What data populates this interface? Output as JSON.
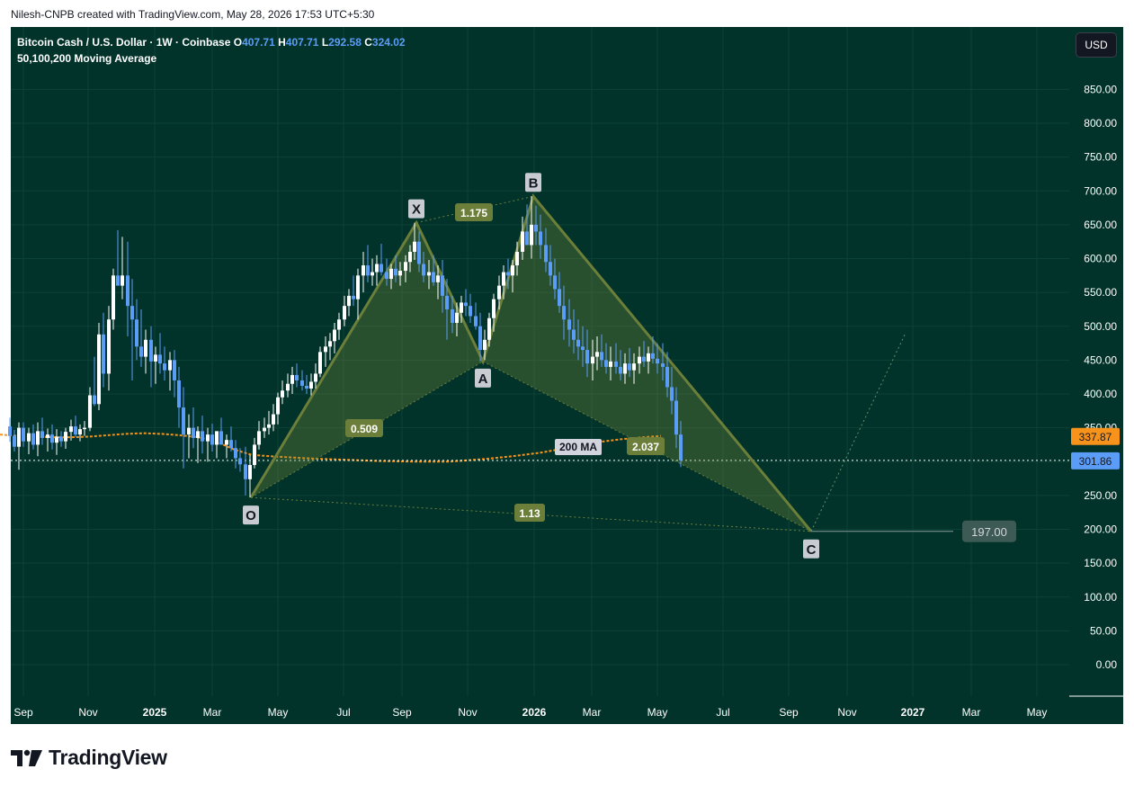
{
  "header": {
    "attribution": "Nilesh-CNPB created with TradingView.com, May 28, 2026 17:53 UTC+5:30"
  },
  "legend": {
    "symbol": "Bitcoin Cash / U.S. Dollar · 1W · Coinbase",
    "o_label": "O",
    "o_value": "407.71",
    "h_label": "H",
    "h_value": "407.71",
    "l_label": "L",
    "l_value": "292.58",
    "c_label": "C",
    "c_value": "324.02",
    "indicator": "50,100,200 Moving Average"
  },
  "currency_button": "USD",
  "brand": {
    "name": "TradingView"
  },
  "colors": {
    "background": "#01332a",
    "candle_up": "#ffffff",
    "candle_down": "#5b9cf6",
    "pattern_line": "#6b7f3a",
    "pattern_fill": "#7b8f3a",
    "ma_line": "#f7931a",
    "label_fill": "#6b7f3a",
    "price_badge": "#5b9cf6",
    "ma_badge": "#f7931a"
  },
  "chart_data": {
    "type": "candlestick",
    "interval": "1W",
    "yaxis": {
      "ticks": [
        "850.00",
        "800.00",
        "750.00",
        "700.00",
        "650.00",
        "600.00",
        "550.00",
        "500.00",
        "450.00",
        "400.00",
        "350.00",
        "300.00",
        "250.00",
        "200.00",
        "150.00",
        "100.00",
        "50.00",
        "0.00"
      ],
      "range": [
        -47,
        905
      ]
    },
    "xaxis": {
      "ticks": [
        "Sep",
        "Nov",
        "2025",
        "Mar",
        "May",
        "Jul",
        "Sep",
        "Nov",
        "2026",
        "Mar",
        "May",
        "Jul",
        "Sep",
        "Nov",
        "2027",
        "Mar",
        "May"
      ],
      "bold_ticks": [
        "2025",
        "2026",
        "2027"
      ]
    },
    "last_price": "301.86",
    "last_price_value": 301.86,
    "ma_badge": "337.87",
    "ma_badge_value": 337.87,
    "ma_label": "200 MA",
    "ma_values": [
      [
        0,
        340
      ],
      [
        20,
        338
      ],
      [
        40,
        337
      ],
      [
        60,
        336
      ],
      [
        80,
        336
      ],
      [
        100,
        337
      ],
      [
        120,
        339
      ],
      [
        140,
        341
      ],
      [
        160,
        342
      ],
      [
        180,
        341
      ],
      [
        200,
        339
      ],
      [
        220,
        336
      ],
      [
        240,
        330
      ],
      [
        260,
        318
      ],
      [
        280,
        310
      ],
      [
        300,
        308
      ],
      [
        340,
        305
      ],
      [
        380,
        303
      ],
      [
        420,
        301
      ],
      [
        460,
        300
      ],
      [
        500,
        300
      ],
      [
        540,
        304
      ],
      [
        570,
        308
      ],
      [
        600,
        313
      ],
      [
        630,
        320
      ],
      [
        660,
        328
      ],
      [
        690,
        333
      ],
      [
        715,
        336
      ],
      [
        735,
        338
      ]
    ],
    "target_label": "197.00",
    "target_value": 197,
    "pattern": {
      "points": [
        {
          "name": "O",
          "x": 279,
          "value": 247
        },
        {
          "name": "X",
          "x": 463,
          "value": 653
        },
        {
          "name": "A",
          "x": 537,
          "value": 448
        },
        {
          "name": "B",
          "x": 593,
          "value": 692
        },
        {
          "name": "C",
          "x": 902,
          "value": 197
        }
      ],
      "ratios": [
        {
          "text": "1.175",
          "between": "X-B"
        },
        {
          "text": "0.509",
          "between": "O-A"
        },
        {
          "text": "2.037",
          "between": "A-C"
        },
        {
          "text": "1.13",
          "between": "O-C"
        }
      ],
      "projection": {
        "from_x": 902,
        "to_x": 1007,
        "to_value": 490
      }
    },
    "candles": [
      [
        11,
        352,
        365,
        329,
        338
      ],
      [
        16,
        338,
        347,
        315,
        322
      ],
      [
        21,
        322,
        358,
        288,
        350
      ],
      [
        26,
        350,
        358,
        322,
        330
      ],
      [
        32,
        330,
        350,
        311,
        342
      ],
      [
        37,
        342,
        355,
        318,
        325
      ],
      [
        42,
        325,
        358,
        308,
        345
      ],
      [
        47,
        345,
        365,
        325,
        335
      ],
      [
        53,
        335,
        349,
        315,
        340
      ],
      [
        58,
        340,
        355,
        318,
        328
      ],
      [
        63,
        328,
        348,
        310,
        337
      ],
      [
        68,
        337,
        345,
        322,
        330
      ],
      [
        73,
        330,
        350,
        319,
        344
      ],
      [
        79,
        344,
        362,
        331,
        352
      ],
      [
        84,
        352,
        368,
        336,
        340
      ],
      [
        89,
        340,
        355,
        330,
        348
      ],
      [
        94,
        348,
        360,
        338,
        350
      ],
      [
        100,
        350,
        410,
        345,
        398
      ],
      [
        105,
        398,
        455,
        382,
        385
      ],
      [
        110,
        385,
        505,
        376,
        488
      ],
      [
        115,
        488,
        520,
        410,
        430
      ],
      [
        121,
        430,
        530,
        405,
        510
      ],
      [
        126,
        510,
        585,
        495,
        575
      ],
      [
        131,
        575,
        642,
        560,
        560
      ],
      [
        136,
        560,
        632,
        540,
        575
      ],
      [
        142,
        575,
        625,
        485,
        530
      ],
      [
        147,
        530,
        570,
        420,
        510
      ],
      [
        152,
        510,
        540,
        450,
        470
      ],
      [
        157,
        470,
        525,
        440,
        455
      ],
      [
        162,
        455,
        495,
        430,
        480
      ],
      [
        168,
        480,
        500,
        410,
        448
      ],
      [
        173,
        448,
        470,
        415,
        458
      ],
      [
        178,
        458,
        490,
        430,
        445
      ],
      [
        183,
        445,
        470,
        420,
        435
      ],
      [
        189,
        435,
        462,
        405,
        450
      ],
      [
        194,
        450,
        465,
        395,
        420
      ],
      [
        199,
        420,
        440,
        350,
        380
      ],
      [
        204,
        380,
        410,
        290,
        340
      ],
      [
        210,
        340,
        370,
        305,
        350
      ],
      [
        215,
        350,
        380,
        320,
        335
      ],
      [
        220,
        335,
        352,
        298,
        345
      ],
      [
        225,
        345,
        368,
        312,
        330
      ],
      [
        231,
        330,
        350,
        300,
        340
      ],
      [
        236,
        340,
        356,
        315,
        325
      ],
      [
        241,
        325,
        345,
        305,
        345
      ],
      [
        246,
        345,
        365,
        328,
        325
      ],
      [
        252,
        325,
        340,
        305,
        332
      ],
      [
        257,
        332,
        352,
        315,
        320
      ],
      [
        262,
        320,
        332,
        290,
        305
      ],
      [
        267,
        305,
        320,
        285,
        296
      ],
      [
        273,
        296,
        322,
        250,
        274
      ],
      [
        278,
        274,
        310,
        247,
        295
      ],
      [
        283,
        295,
        335,
        290,
        325
      ],
      [
        288,
        325,
        360,
        318,
        345
      ],
      [
        294,
        345,
        365,
        335,
        350
      ],
      [
        299,
        350,
        375,
        340,
        355
      ],
      [
        304,
        355,
        385,
        345,
        370
      ],
      [
        309,
        370,
        402,
        355,
        395
      ],
      [
        314,
        395,
        420,
        385,
        405
      ],
      [
        320,
        405,
        430,
        395,
        415
      ],
      [
        325,
        415,
        440,
        400,
        428
      ],
      [
        330,
        428,
        445,
        410,
        420
      ],
      [
        336,
        420,
        435,
        405,
        412
      ],
      [
        341,
        412,
        428,
        400,
        408
      ],
      [
        346,
        408,
        430,
        398,
        418
      ],
      [
        351,
        418,
        445,
        408,
        430
      ],
      [
        356,
        430,
        470,
        425,
        462
      ],
      [
        362,
        462,
        485,
        440,
        470
      ],
      [
        367,
        470,
        490,
        450,
        478
      ],
      [
        372,
        478,
        505,
        460,
        495
      ],
      [
        377,
        495,
        520,
        480,
        510
      ],
      [
        383,
        510,
        545,
        500,
        530
      ],
      [
        388,
        530,
        555,
        515,
        545
      ],
      [
        393,
        545,
        575,
        530,
        540
      ],
      [
        398,
        540,
        585,
        510,
        575
      ],
      [
        404,
        575,
        610,
        550,
        590
      ],
      [
        409,
        590,
        620,
        565,
        575
      ],
      [
        414,
        575,
        600,
        560,
        580
      ],
      [
        419,
        580,
        605,
        560,
        592
      ],
      [
        424,
        592,
        622,
        575,
        580
      ],
      [
        430,
        580,
        600,
        560,
        570
      ],
      [
        435,
        570,
        592,
        555,
        585
      ],
      [
        440,
        585,
        605,
        565,
        575
      ],
      [
        445,
        575,
        595,
        560,
        582
      ],
      [
        451,
        582,
        605,
        565,
        595
      ],
      [
        456,
        595,
        620,
        580,
        610
      ],
      [
        461,
        610,
        653,
        598,
        625
      ],
      [
        466,
        625,
        640,
        580,
        592
      ],
      [
        471,
        592,
        610,
        565,
        575
      ],
      [
        477,
        575,
        598,
        555,
        580
      ],
      [
        482,
        580,
        605,
        560,
        565
      ],
      [
        487,
        565,
        590,
        540,
        575
      ],
      [
        492,
        575,
        598,
        520,
        545
      ],
      [
        497,
        545,
        570,
        480,
        525
      ],
      [
        503,
        525,
        545,
        490,
        505
      ],
      [
        508,
        505,
        535,
        485,
        520
      ],
      [
        513,
        520,
        545,
        505,
        535
      ],
      [
        518,
        535,
        555,
        515,
        530
      ],
      [
        523,
        530,
        548,
        505,
        515
      ],
      [
        529,
        515,
        535,
        495,
        500
      ],
      [
        534,
        500,
        520,
        448,
        465
      ],
      [
        539,
        465,
        495,
        450,
        480
      ],
      [
        544,
        480,
        520,
        470,
        512
      ],
      [
        549,
        512,
        548,
        492,
        540
      ],
      [
        555,
        540,
        575,
        525,
        560
      ],
      [
        560,
        560,
        590,
        540,
        580
      ],
      [
        565,
        580,
        600,
        555,
        575
      ],
      [
        570,
        575,
        598,
        550,
        590
      ],
      [
        575,
        590,
        625,
        575,
        610
      ],
      [
        581,
        610,
        662,
        598,
        640
      ],
      [
        586,
        640,
        680,
        620,
        620
      ],
      [
        591,
        620,
        692,
        600,
        650
      ],
      [
        596,
        650,
        678,
        620,
        640
      ],
      [
        601,
        640,
        665,
        600,
        620
      ],
      [
        607,
        620,
        645,
        580,
        595
      ],
      [
        612,
        595,
        620,
        560,
        575
      ],
      [
        617,
        575,
        600,
        540,
        555
      ],
      [
        622,
        555,
        580,
        520,
        530
      ],
      [
        627,
        530,
        560,
        480,
        510
      ],
      [
        633,
        510,
        540,
        470,
        495
      ],
      [
        638,
        495,
        525,
        460,
        480
      ],
      [
        643,
        480,
        510,
        450,
        470
      ],
      [
        648,
        470,
        500,
        440,
        465
      ],
      [
        653,
        465,
        495,
        425,
        445
      ],
      [
        659,
        445,
        480,
        420,
        455
      ],
      [
        664,
        455,
        485,
        435,
        462
      ],
      [
        669,
        462,
        488,
        440,
        450
      ],
      [
        674,
        450,
        475,
        430,
        440
      ],
      [
        679,
        440,
        470,
        420,
        448
      ],
      [
        685,
        448,
        475,
        430,
        440
      ],
      [
        690,
        440,
        465,
        420,
        430
      ],
      [
        695,
        430,
        460,
        415,
        445
      ],
      [
        700,
        445,
        468,
        425,
        435
      ],
      [
        705,
        435,
        460,
        415,
        445
      ],
      [
        711,
        445,
        470,
        430,
        455
      ],
      [
        716,
        455,
        478,
        440,
        448
      ],
      [
        721,
        448,
        470,
        430,
        460
      ],
      [
        726,
        460,
        485,
        445,
        452
      ],
      [
        731,
        452,
        475,
        430,
        445
      ],
      [
        737,
        445,
        475,
        420,
        440
      ],
      [
        742,
        440,
        462,
        395,
        410
      ],
      [
        747,
        410,
        440,
        370,
        390
      ],
      [
        752,
        390,
        410,
        320,
        340
      ],
      [
        757,
        340,
        360,
        292,
        302
      ]
    ]
  }
}
